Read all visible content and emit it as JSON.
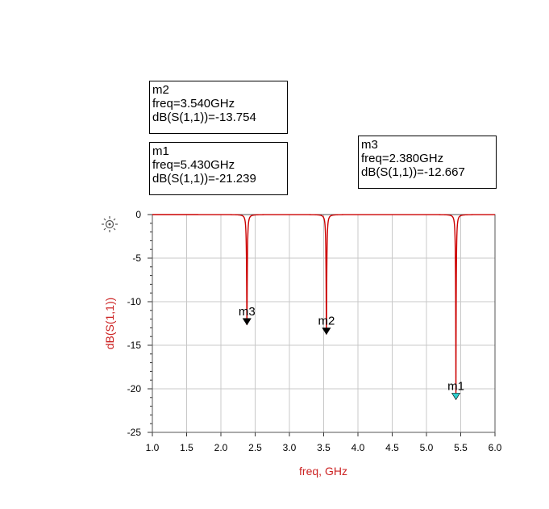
{
  "markers": [
    {
      "name": "m2",
      "freq_text": "freq=3.540GHz",
      "value_text": "dB(S(1,1))=-13.754"
    },
    {
      "name": "m1",
      "freq_text": "freq=5.430GHz",
      "value_text": "dB(S(1,1))=-21.239"
    },
    {
      "name": "m3",
      "freq_text": "freq=2.380GHz",
      "value_text": "dB(S(1,1))=-12.667"
    }
  ],
  "chart_data": {
    "type": "line",
    "title": "",
    "xlabel": "freq, GHz",
    "ylabel": "dB(S(1,1))",
    "xlim": [
      1.0,
      6.0
    ],
    "ylim": [
      -25,
      0
    ],
    "x_ticks": [
      "1.0",
      "1.5",
      "2.0",
      "2.5",
      "3.0",
      "3.5",
      "4.0",
      "4.5",
      "5.0",
      "5.5",
      "6.0"
    ],
    "y_ticks": [
      "0",
      "-5",
      "-10",
      "-15",
      "-20",
      "-25"
    ],
    "grid": true,
    "series": [
      {
        "color": "#cc0000",
        "resonances": [
          {
            "freq": 2.38,
            "depth": -12.667
          },
          {
            "freq": 3.54,
            "depth": -13.754
          },
          {
            "freq": 5.43,
            "depth": -21.239
          }
        ]
      }
    ],
    "markers": [
      {
        "name": "m1",
        "x": 5.43,
        "y": -21.239,
        "color": "#33cccc"
      },
      {
        "name": "m2",
        "x": 3.54,
        "y": -13.754,
        "color": "#000000"
      },
      {
        "name": "m3",
        "x": 2.38,
        "y": -12.667,
        "color": "#000000"
      }
    ],
    "colors": {
      "trace": "#cc0000",
      "grid": "#c8c8c8",
      "axis_title": "#cc2222"
    }
  }
}
